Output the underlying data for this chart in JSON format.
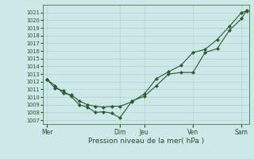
{
  "xlabel": "Pression niveau de la mer( hPa )",
  "ylim": [
    1006.5,
    1022.0
  ],
  "yticks": [
    1007,
    1008,
    1009,
    1010,
    1011,
    1012,
    1013,
    1014,
    1015,
    1016,
    1017,
    1018,
    1019,
    1020,
    1021
  ],
  "bg_color": "#cce8e8",
  "grid_color": "#aacccc",
  "line_color": "#2d5a2d",
  "marker_color": "#2d5a2d",
  "xtick_labels": [
    "Mer",
    "",
    "Dim",
    "Jeu",
    "",
    "Ven",
    "",
    "Sam"
  ],
  "vline_positions": [
    0,
    3,
    4,
    6,
    8
  ],
  "xlim": [
    -0.15,
    8.3
  ],
  "line1_x": [
    0,
    0.33,
    0.67,
    1.0,
    1.33,
    1.67,
    2.0,
    2.33,
    2.67,
    3.0,
    3.5,
    4.0,
    4.5,
    5.0,
    5.5,
    6.0,
    6.5,
    7.0,
    7.5,
    8.0,
    8.2
  ],
  "line1_y": [
    1012.3,
    1011.2,
    1010.8,
    1010.1,
    1009.0,
    1008.7,
    1008.0,
    1008.1,
    1007.9,
    1007.3,
    1009.5,
    1010.1,
    1011.5,
    1013.0,
    1013.2,
    1013.2,
    1015.8,
    1016.3,
    1018.7,
    1020.2,
    1021.3
  ],
  "line2_x": [
    0,
    0.33,
    0.67,
    1.0,
    1.33,
    1.67,
    2.0,
    2.33,
    2.67,
    3.0,
    3.5,
    4.0,
    4.5,
    5.0,
    5.5,
    6.0,
    6.5,
    7.0,
    7.5,
    8.0,
    8.2
  ],
  "line2_y": [
    1012.3,
    1011.5,
    1010.5,
    1010.3,
    1009.5,
    1009.0,
    1008.8,
    1008.7,
    1008.8,
    1008.8,
    1009.4,
    1010.4,
    1012.4,
    1013.3,
    1014.1,
    1015.8,
    1016.2,
    1017.5,
    1019.2,
    1021.0,
    1021.2
  ],
  "ytick_fontsize": 4.8,
  "xtick_fontsize": 5.5,
  "xlabel_fontsize": 6.5,
  "tick_color": "#2d4a2d",
  "spine_color": "#4a7a4a"
}
